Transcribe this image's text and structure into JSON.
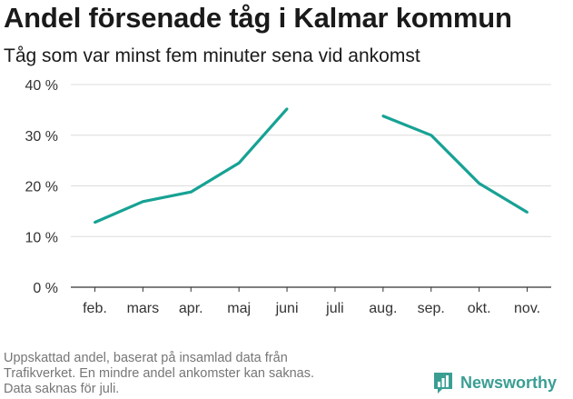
{
  "chart_data": {
    "type": "line",
    "title": "Andel försenade tåg i Kalmar kommun",
    "subtitle": "Tåg som var minst fem minuter sena vid ankomst",
    "categories": [
      "feb.",
      "mars",
      "apr.",
      "maj",
      "juni",
      "juli",
      "aug.",
      "sep.",
      "okt.",
      "nov."
    ],
    "series": [
      {
        "values": [
          12.8,
          16.9,
          18.8,
          24.5,
          35.2,
          null,
          33.8,
          30.0,
          20.5,
          14.8
        ]
      }
    ],
    "yticks": [
      "0 %",
      "10 %",
      "20 %",
      "30 %",
      "40 %"
    ],
    "ylim": [
      0,
      40
    ],
    "grid": true,
    "line_color": "#16a294"
  },
  "footer": {
    "note_lines": [
      "Uppskattad andel, baserat på insamlad data från",
      "Trafikverket. En mindre andel ankomster kan saknas.",
      "Data saknas för juli."
    ],
    "brand": "Newsworthy",
    "brand_icon": "bar-chart-icon",
    "brand_color": "#3a9e93"
  }
}
